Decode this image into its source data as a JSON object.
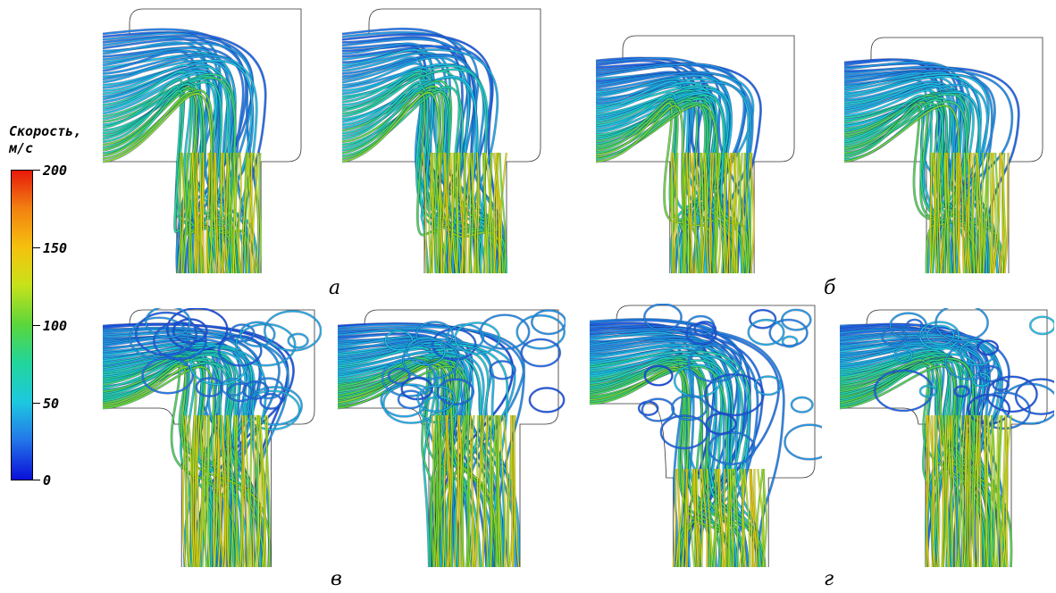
{
  "legend": {
    "title": "Скорость,\nм/с",
    "ticks": [
      "200",
      "150",
      "100",
      "50",
      "0"
    ],
    "colors": [
      "#e61a0a",
      "#f5c20e",
      "#59d63c",
      "#1dc8e0",
      "#0a0fd8"
    ]
  },
  "captions": {
    "a": "а",
    "b": "б",
    "v": "в",
    "g": "г"
  }
}
